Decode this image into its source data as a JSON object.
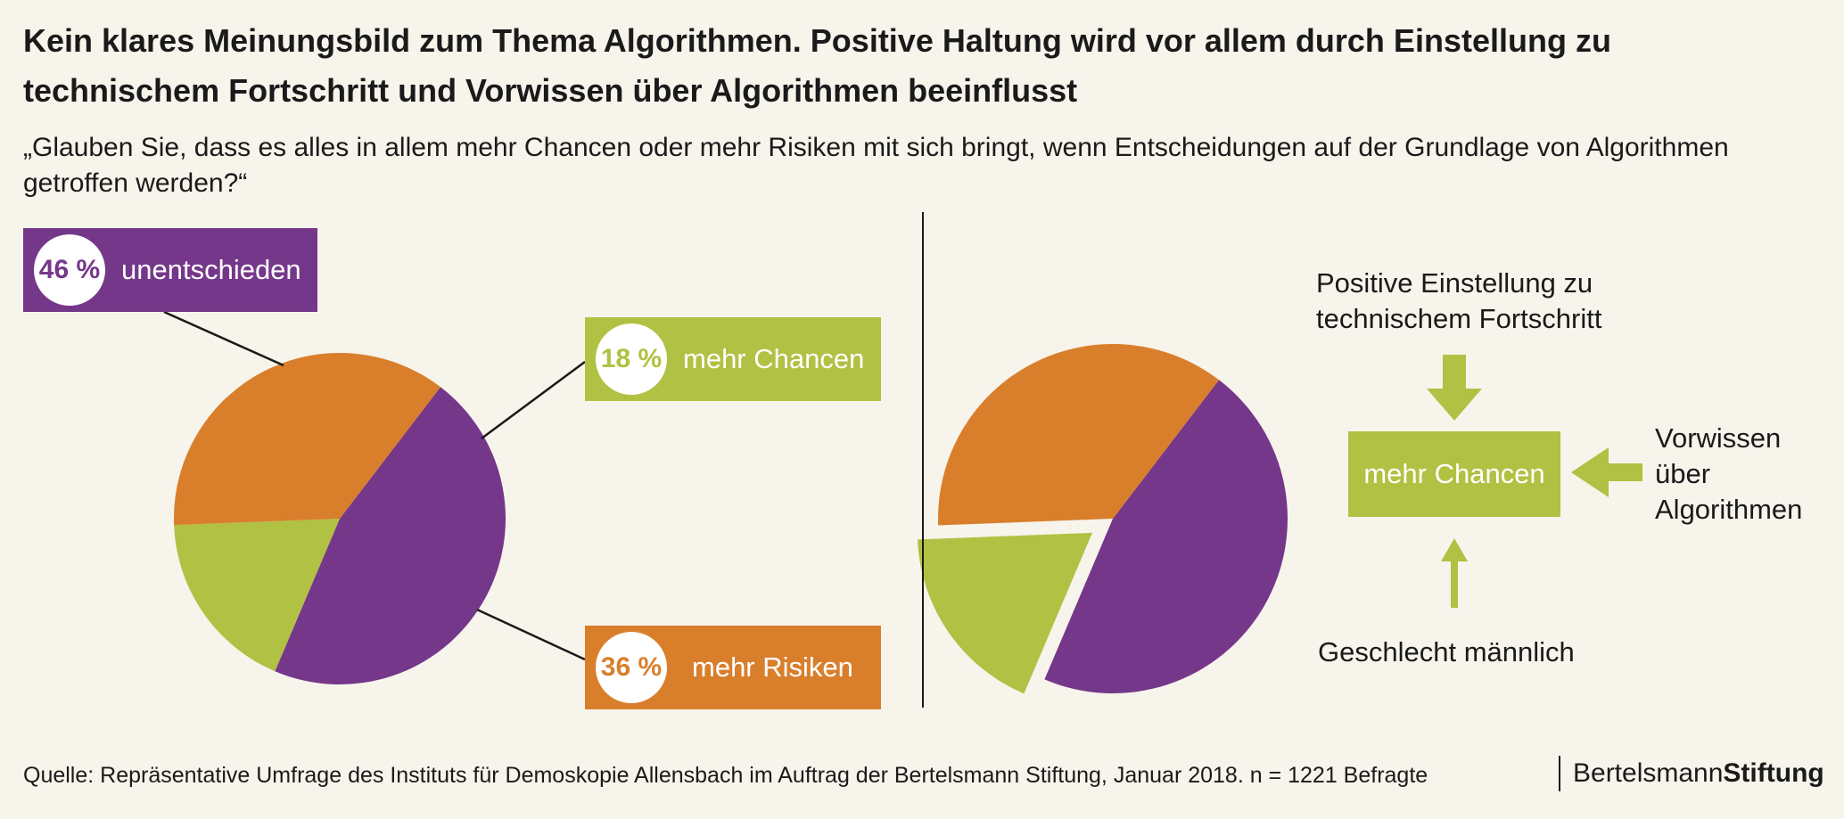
{
  "header": {
    "title": "Kein klares Meinungsbild zum Thema Algorithmen. Positive Haltung wird vor allem durch Einstellung zu technischem Fortschritt und Vorwissen über Algorithmen beeinflusst",
    "subtitle": "„Glauben Sie, dass es alles in allem mehr Chancen oder mehr Risiken mit sich bringt, wenn Entscheidungen auf der Grundlage von Algorithmen getroffen werden?“"
  },
  "colors": {
    "purple": "#75378a",
    "green": "#b1c143",
    "orange": "#d97f2c",
    "background": "#f7f4ec"
  },
  "chart_data": [
    {
      "type": "pie",
      "slices": [
        {
          "label": "unentschieden",
          "value": 46,
          "value_label": "46 %",
          "color": "#75378a"
        },
        {
          "label": "mehr Chancen",
          "value": 18,
          "value_label": "18 %",
          "color": "#b1c143"
        },
        {
          "label": "mehr Risiken",
          "value": 36,
          "value_label": "36 %",
          "color": "#d97f2c"
        }
      ]
    },
    {
      "type": "pie",
      "exploded_slice": "mehr Chancen",
      "slices": [
        {
          "label": "unentschieden",
          "value": 46,
          "color": "#75378a"
        },
        {
          "label": "mehr Chancen",
          "value": 18,
          "color": "#b1c143"
        },
        {
          "label": "mehr Risiken",
          "value": 36,
          "color": "#d97f2c"
        }
      ]
    }
  ],
  "influence": {
    "center_label": "mehr Chancen",
    "top_factor_line1": "Positive Einstellung zu",
    "top_factor_line2": "technischem Fortschritt",
    "right_factor_line1": "Vorwissen",
    "right_factor_line2": "über",
    "right_factor_line3": "Algorithmen",
    "bottom_factor": "Geschlecht männlich"
  },
  "footer": {
    "source": "Quelle: Repräsentative Umfrage des Instituts für Demoskopie Allensbach im Auftrag der Bertelsmann Stiftung, Januar 2018. n = 1221 Befragte",
    "brand_light": "Bertelsmann",
    "brand_bold": "Stiftung"
  }
}
